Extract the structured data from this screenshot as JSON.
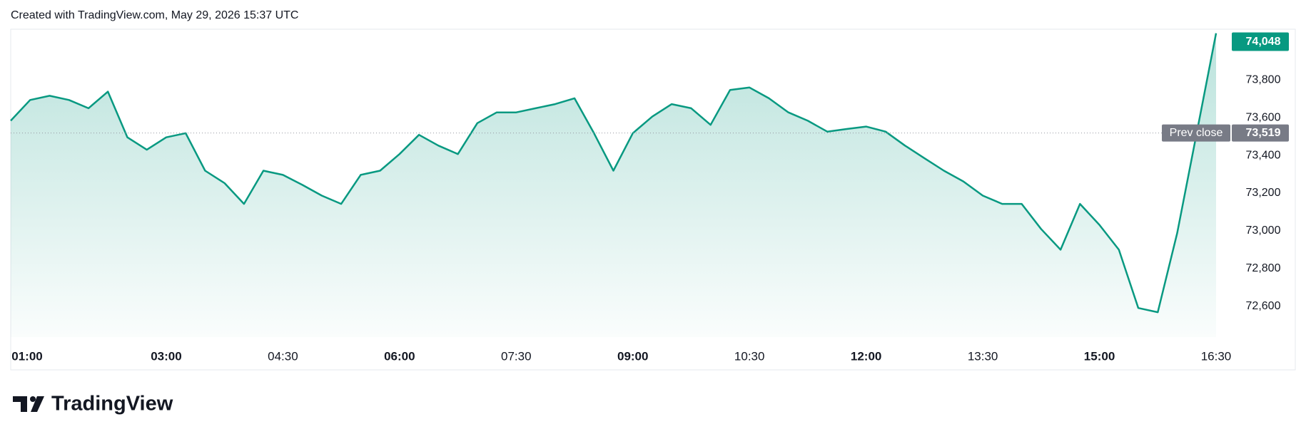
{
  "header": "Created with TradingView.com, May 29, 2026 15:37 UTC",
  "logo": "TradingView",
  "chart_data": {
    "type": "area",
    "color": "#089981",
    "x": [
      "01:00",
      "01:15",
      "01:30",
      "01:45",
      "02:00",
      "02:15",
      "02:30",
      "02:45",
      "03:00",
      "03:15",
      "03:30",
      "03:45",
      "04:00",
      "04:15",
      "04:30",
      "04:45",
      "05:00",
      "05:15",
      "05:30",
      "05:45",
      "06:00",
      "06:15",
      "06:30",
      "06:45",
      "07:00",
      "07:15",
      "07:30",
      "07:45",
      "08:00",
      "08:15",
      "08:30",
      "08:45",
      "09:00",
      "09:15",
      "09:30",
      "09:45",
      "10:00",
      "10:15",
      "10:30",
      "10:45",
      "11:00",
      "11:15",
      "11:30",
      "11:45",
      "12:00",
      "12:15",
      "12:30",
      "12:45",
      "13:00",
      "13:15",
      "13:30",
      "13:45",
      "14:00",
      "14:15",
      "14:30",
      "14:45",
      "15:00",
      "15:15",
      "15:30",
      "15:45",
      "16:00",
      "16:15",
      "16:30"
    ],
    "values": [
      73584,
      73694,
      73716,
      73694,
      73650,
      73738,
      73496,
      73430,
      73496,
      73518,
      73319,
      73253,
      73143,
      73319,
      73297,
      73244,
      73187,
      73143,
      73297,
      73319,
      73407,
      73509,
      73452,
      73407,
      73571,
      73628,
      73628,
      73650,
      73672,
      73703,
      73518,
      73319,
      73518,
      73606,
      73672,
      73650,
      73562,
      73747,
      73760,
      73703,
      73628,
      73584,
      73526,
      73540,
      73553,
      73526,
      73452,
      73385,
      73319,
      73262,
      73187,
      73143,
      73143,
      73010,
      72900,
      73143,
      73032,
      72900,
      72591,
      72569,
      72988,
      73518,
      74048
    ],
    "xticks": [
      "01:00",
      "03:00",
      "04:30",
      "06:00",
      "07:30",
      "09:00",
      "10:30",
      "12:00",
      "13:30",
      "15:00",
      "16:30"
    ],
    "ylim": [
      72437,
      74069
    ],
    "yticks": [
      {
        "value": 72600,
        "label": "72,600"
      },
      {
        "value": 72800,
        "label": "72,800"
      },
      {
        "value": 73000,
        "label": "73,000"
      },
      {
        "value": 73200,
        "label": "73,200"
      },
      {
        "value": 73400,
        "label": "73,400"
      },
      {
        "value": 73600,
        "label": "73,600"
      },
      {
        "value": 73800,
        "label": "73,800"
      }
    ],
    "prev_close": {
      "value": 73519,
      "label": "73,519",
      "name": "Prev close"
    },
    "last_price": {
      "value": 74048,
      "label": "74,048"
    }
  }
}
